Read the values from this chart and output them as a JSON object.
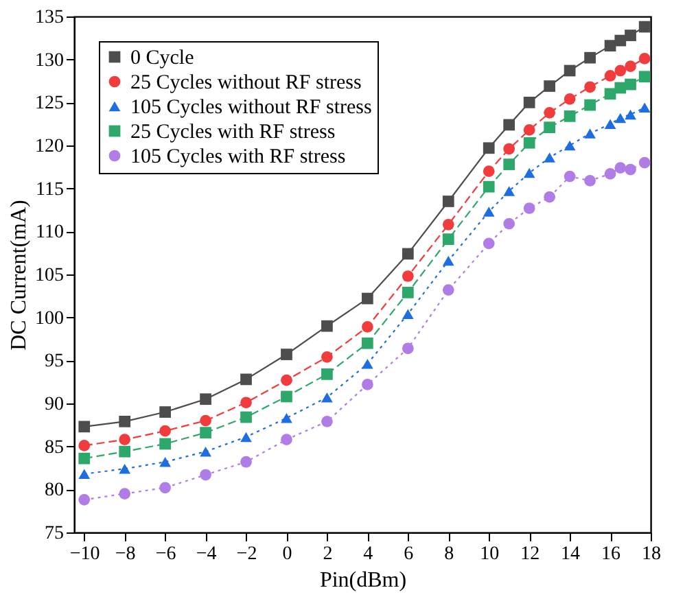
{
  "chart_data": {
    "type": "line",
    "xlabel": "Pin(dBm)",
    "ylabel": "DC Current(mA)",
    "x": [
      -10,
      -8,
      -6,
      -4,
      -2,
      0,
      2,
      4,
      6,
      8,
      10,
      11,
      12,
      13,
      14,
      15,
      16,
      16.5,
      17,
      17.7
    ],
    "xlim": [
      -10.5,
      18
    ],
    "xticks": [
      -10,
      -8,
      -6,
      -4,
      -2,
      0,
      2,
      4,
      6,
      8,
      10,
      12,
      14,
      16,
      18
    ],
    "ylim": [
      75,
      135
    ],
    "yticks": [
      75,
      80,
      85,
      90,
      95,
      100,
      105,
      110,
      115,
      120,
      125,
      130,
      135
    ],
    "grid": false,
    "legend": "top left",
    "series": [
      {
        "name": "0 Cycle",
        "color": "#4d4d4d",
        "marker": "square",
        "line_style": "solid",
        "values": [
          87.3,
          87.9,
          89.0,
          90.5,
          92.8,
          95.7,
          99.0,
          102.2,
          107.4,
          113.5,
          119.7,
          122.4,
          125.0,
          126.9,
          128.7,
          130.2,
          131.6,
          132.2,
          132.8,
          133.8
        ]
      },
      {
        "name": "25 Cycles without RF stress",
        "color": "#f03c3c",
        "marker": "circle",
        "line_style": "dashed",
        "values": [
          85.1,
          85.8,
          86.8,
          88.0,
          90.1,
          92.7,
          95.4,
          98.9,
          104.8,
          110.8,
          117.0,
          119.6,
          121.8,
          123.8,
          125.4,
          126.8,
          128.1,
          128.7,
          129.2,
          130.1
        ]
      },
      {
        "name": "105 Cycles without RF stress",
        "color": "#1e6ee0",
        "marker": "triangle",
        "line_style": "dotted",
        "values": [
          81.8,
          82.4,
          83.2,
          84.4,
          86.1,
          88.3,
          90.7,
          94.6,
          100.4,
          106.6,
          112.3,
          114.7,
          116.8,
          118.6,
          120.0,
          121.4,
          122.5,
          123.2,
          123.6,
          124.4
        ]
      },
      {
        "name": "25 Cycles with RF stress",
        "color": "#2ea86a",
        "marker": "square",
        "line_style": "dashed",
        "values": [
          83.6,
          84.4,
          85.3,
          86.6,
          88.4,
          90.8,
          93.4,
          97.0,
          102.9,
          109.1,
          115.2,
          117.8,
          120.3,
          122.1,
          123.4,
          124.7,
          126.0,
          126.7,
          127.1,
          128.0
        ]
      },
      {
        "name": "105 Cycles with RF stress",
        "color": "#b07ce6",
        "marker": "circle",
        "line_style": "dotted",
        "values": [
          78.8,
          79.5,
          80.2,
          81.7,
          83.2,
          85.8,
          87.9,
          92.2,
          96.4,
          103.2,
          108.6,
          110.9,
          112.7,
          114.0,
          116.4,
          115.9,
          116.7,
          117.4,
          117.2,
          118.0
        ]
      }
    ]
  }
}
